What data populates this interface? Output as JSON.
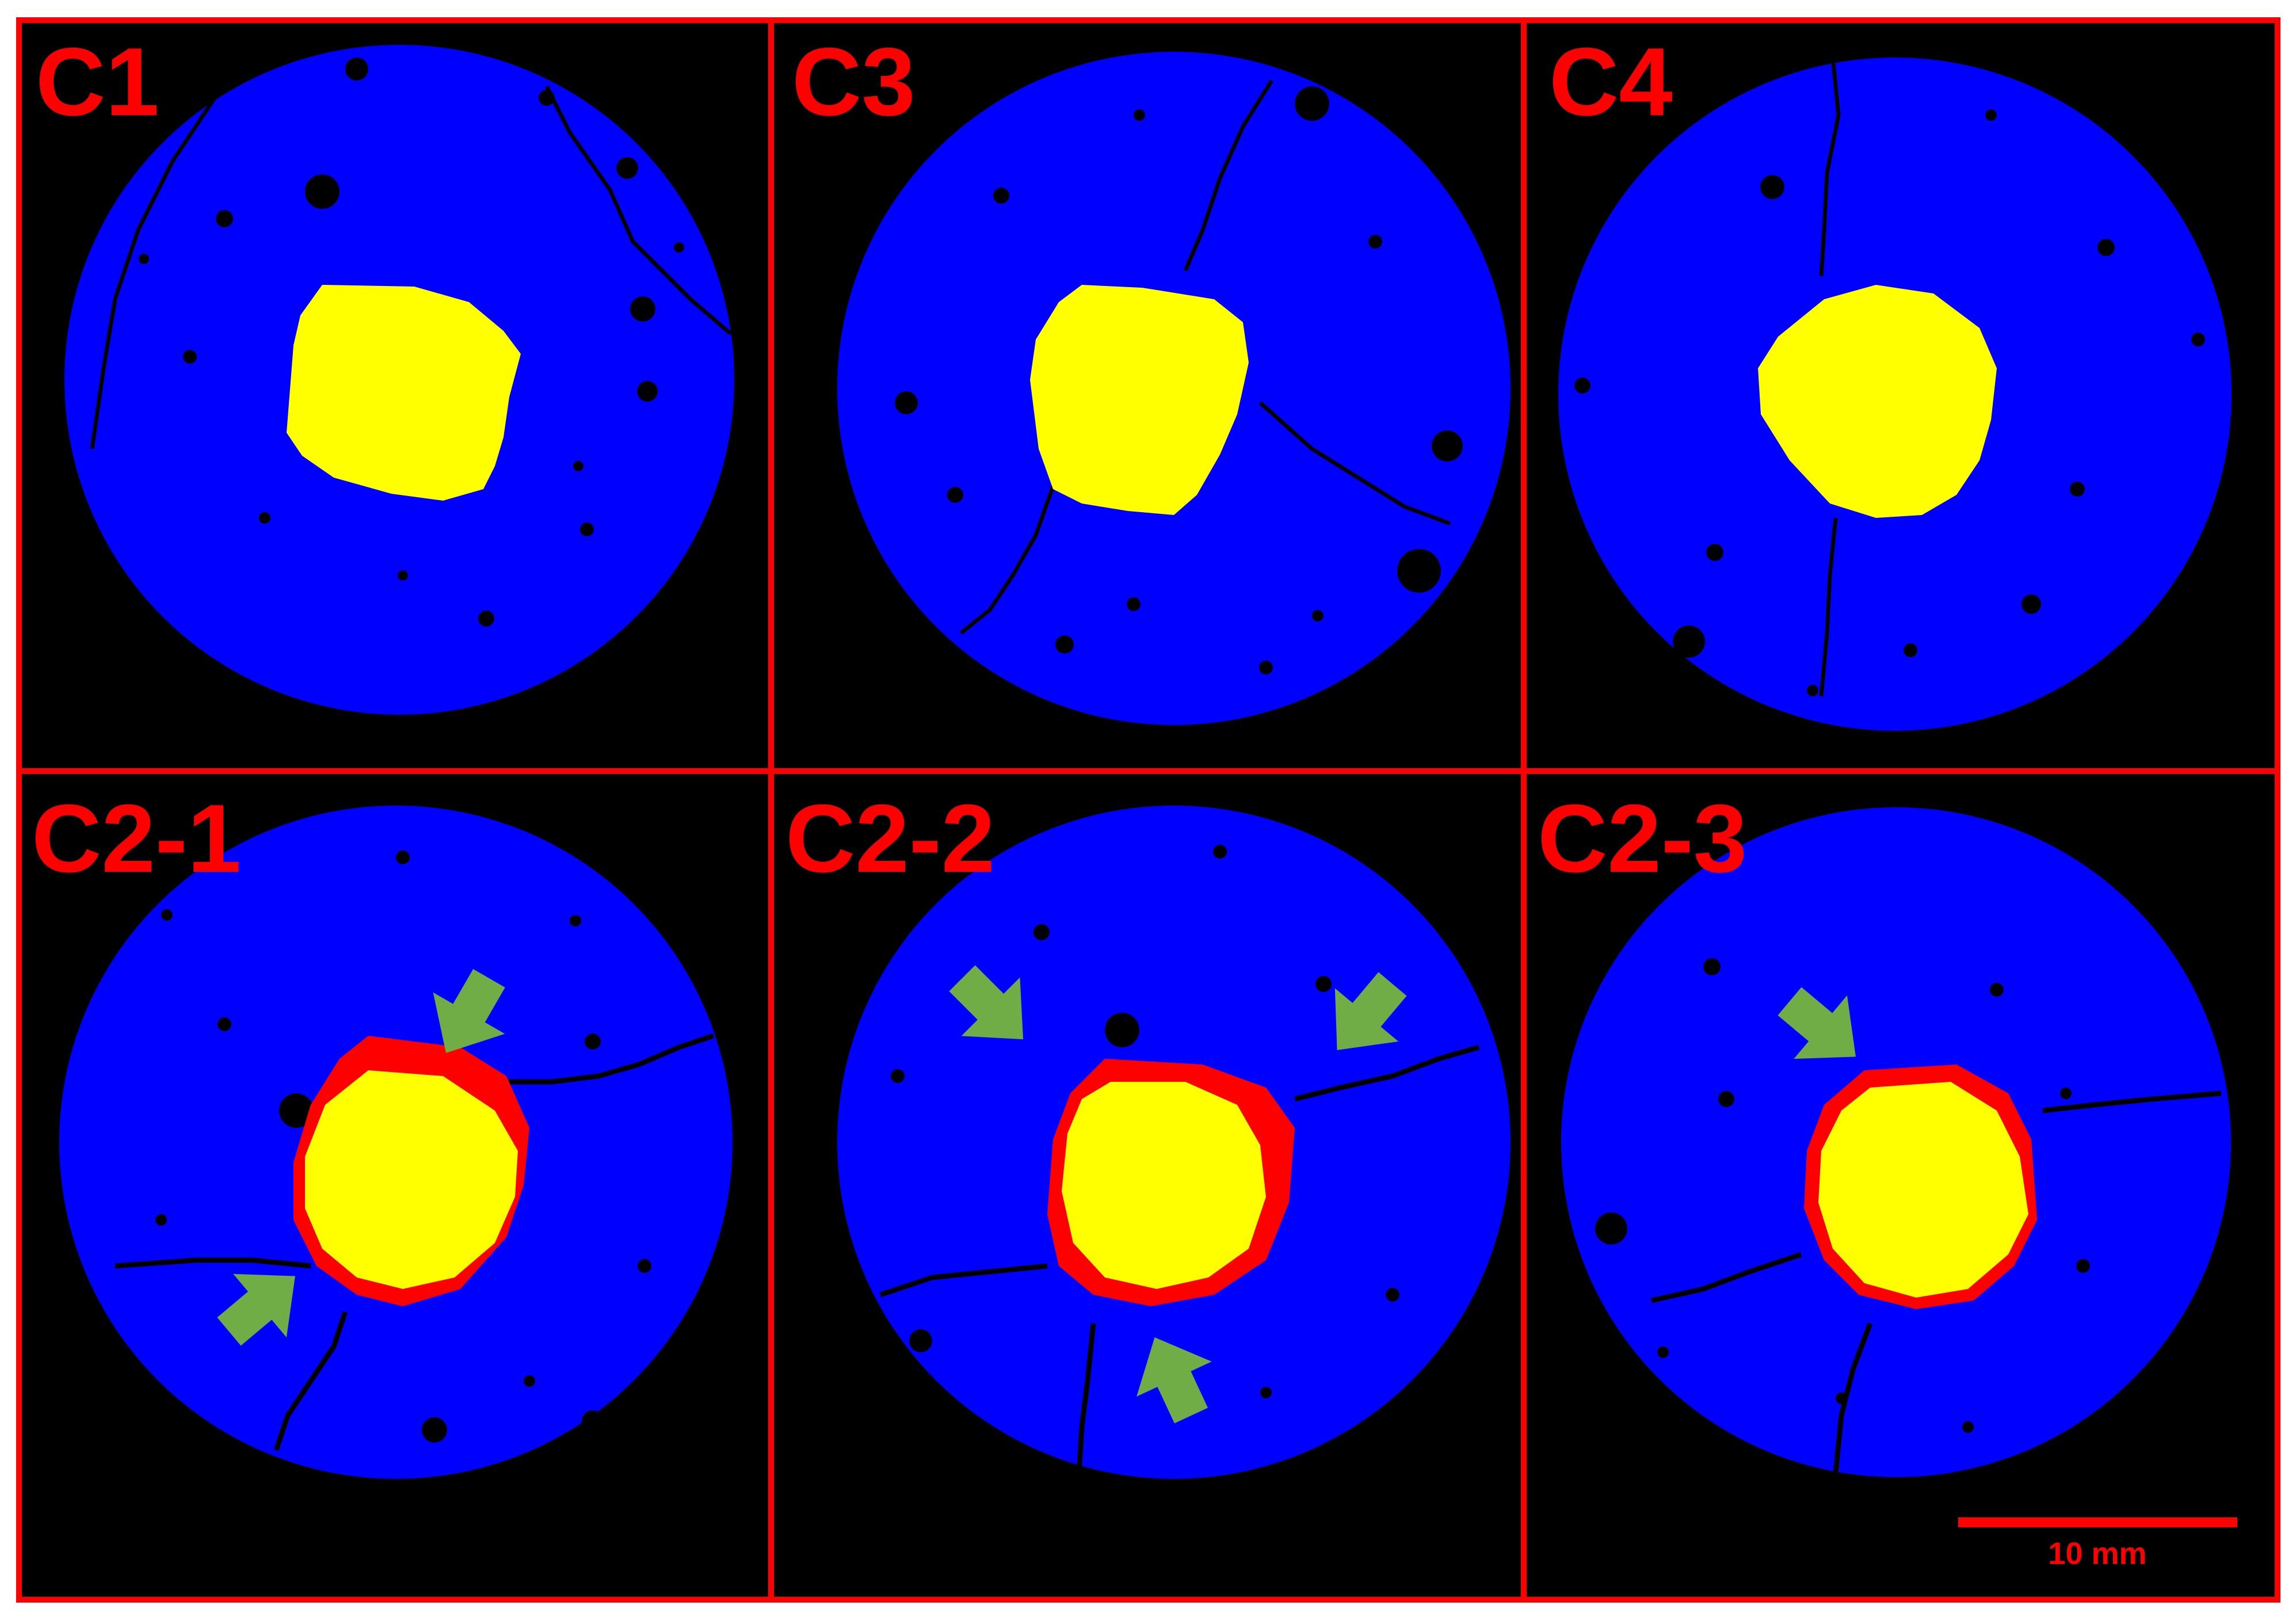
{
  "colors": {
    "background": "#000000",
    "frame": "#ff0000",
    "matrix": "#0000ff",
    "inclusion": "#ffff00",
    "interface": "#ff0000",
    "arrow": "#70ad47",
    "label": "#ff0000"
  },
  "panels": [
    {
      "label": "C1"
    },
    {
      "label": "C3"
    },
    {
      "label": "C4"
    },
    {
      "label": "C2-1"
    },
    {
      "label": "C2-2"
    },
    {
      "label": "C2-3"
    }
  ],
  "scale_bar": {
    "label": "10 mm"
  }
}
